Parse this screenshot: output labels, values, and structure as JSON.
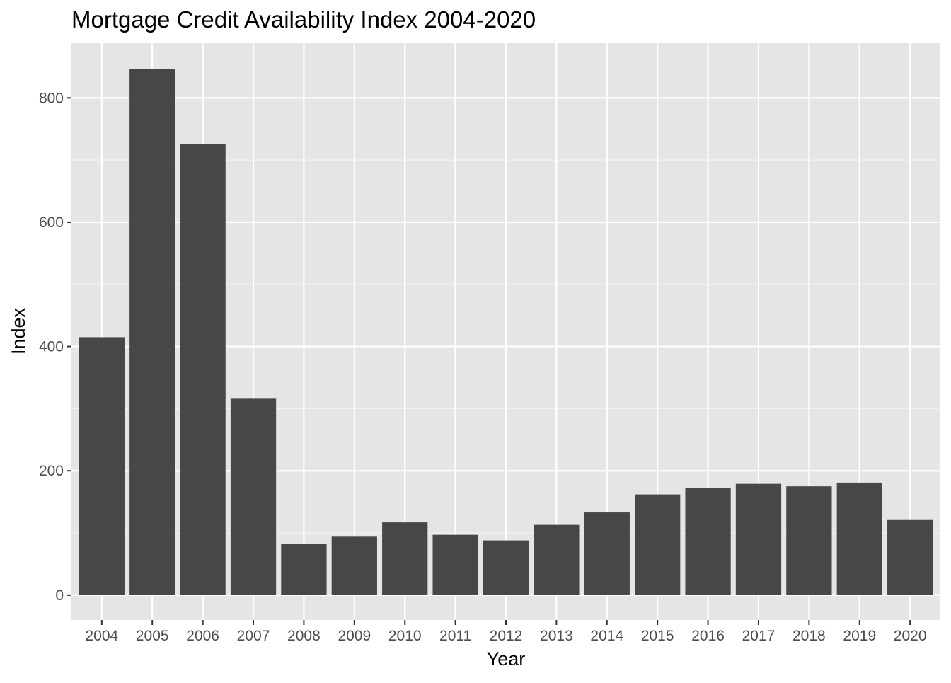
{
  "chart_data": {
    "type": "bar",
    "title": "Mortgage Credit Availability Index 2004-2020",
    "xlabel": "Year",
    "ylabel": "Index",
    "categories": [
      "2004",
      "2005",
      "2006",
      "2007",
      "2008",
      "2009",
      "2010",
      "2011",
      "2012",
      "2013",
      "2014",
      "2015",
      "2016",
      "2017",
      "2018",
      "2019",
      "2020"
    ],
    "values": [
      415,
      846,
      726,
      316,
      83,
      94,
      117,
      97,
      88,
      113,
      133,
      162,
      172,
      179,
      175,
      181,
      122
    ],
    "ylim": [
      -40,
      888
    ],
    "y_ticks": [
      0,
      200,
      400,
      600,
      800
    ],
    "grid": true,
    "legend": "none",
    "colors": {
      "bar": "#474747",
      "panel_background": "#e5e5e5",
      "grid_major": "#ffffff",
      "grid_minor": "#f2f2f2",
      "tick_text": "#4d4d4d",
      "tick_mark": "#333333"
    }
  }
}
